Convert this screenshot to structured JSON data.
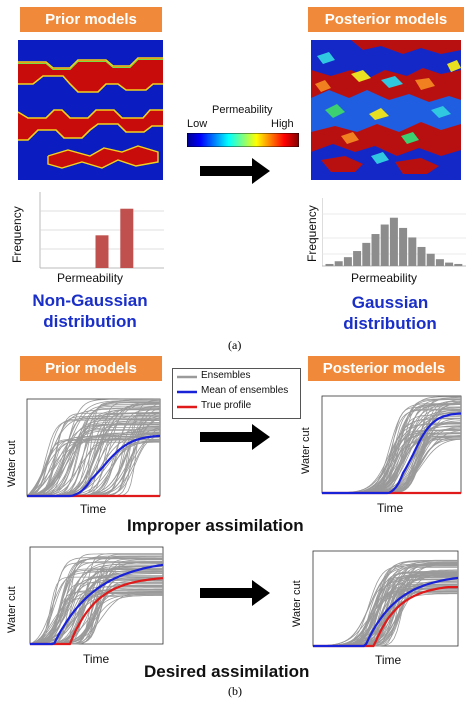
{
  "panel_a": {
    "prior_title": "Prior models",
    "posterior_title": "Posterior models",
    "colorbar": {
      "title": "Permeability",
      "low": "Low",
      "high": "High"
    },
    "prior_hist": {
      "ylabel": "Frequency",
      "xlabel": "Permeability"
    },
    "posterior_hist": {
      "ylabel": "Frequency",
      "xlabel": "Permeability"
    },
    "prior_label_line1": "Non-Gaussian",
    "prior_label_line2": "distribution",
    "posterior_label_line1": "Gaussian",
    "posterior_label_line2": "distribution",
    "caption": "(a)"
  },
  "panel_b": {
    "prior_title": "Prior models",
    "posterior_title": "Posterior models",
    "legend": {
      "ensembles": "Ensembles",
      "mean": "Mean of ensembles",
      "true": "True profile"
    },
    "ylabel": "Water cut",
    "xlabel": "Time",
    "improper_label": "Improper assimilation",
    "desired_label": "Desired assimilation",
    "caption": "(b)"
  },
  "colors": {
    "banner": "#f08a3a",
    "blue_text": "#1a2fc8",
    "ensemble_gray": "#9a9a9a",
    "mean_blue": "#1a22d8",
    "true_red": "#e01a1a",
    "bar_red": "#c0504d",
    "hist_gray": "#8c8c8c"
  },
  "chart_data": [
    {
      "type": "bar",
      "name": "prior-histogram",
      "categories": [
        "1",
        "2",
        "3",
        "4",
        "5"
      ],
      "values": [
        0,
        0,
        0.43,
        0.78,
        0
      ],
      "xlabel": "Permeability",
      "ylabel": "Frequency"
    },
    {
      "type": "bar",
      "name": "posterior-histogram",
      "categories": [
        "1",
        "2",
        "3",
        "4",
        "5",
        "6",
        "7",
        "8",
        "9",
        "10",
        "11",
        "12",
        "13",
        "14",
        "15"
      ],
      "values": [
        0.03,
        0.07,
        0.13,
        0.22,
        0.34,
        0.47,
        0.61,
        0.71,
        0.56,
        0.42,
        0.28,
        0.18,
        0.1,
        0.05,
        0.03
      ],
      "xlabel": "Permeability",
      "ylabel": "Frequency"
    }
  ]
}
